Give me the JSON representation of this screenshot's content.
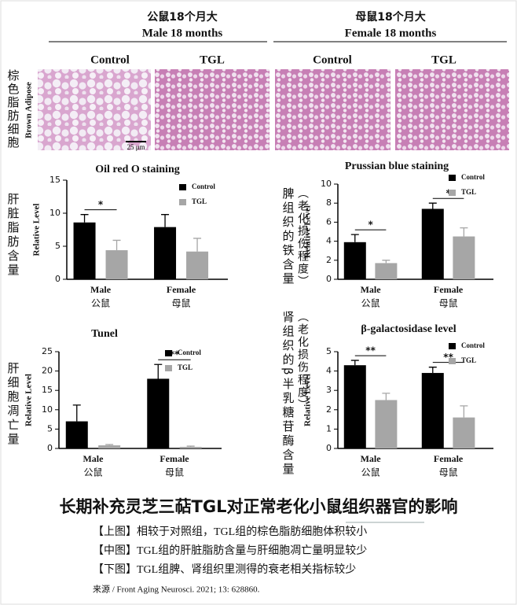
{
  "header": {
    "male_cn": "公鼠18个月大",
    "male_en": "Male  18 months",
    "female_cn": "母鼠18个月大",
    "female_en": "Female  18 months",
    "columns": [
      "Control",
      "TGL",
      "Control",
      "TGL"
    ]
  },
  "histology": {
    "row_label_cn": "棕色脂肪细胞",
    "row_label_en": "Brown Adipose",
    "scale_bar": "25 μm"
  },
  "chart_data": [
    {
      "type": "bar",
      "title": "Oil red O staining",
      "side_label": "肝脏脂肪含量",
      "ylabel": "Relative Level",
      "categories": [
        "Male",
        "Female"
      ],
      "category_sublabels": [
        "公鼠",
        "母鼠"
      ],
      "series": [
        {
          "name": "Control",
          "color": "#000000",
          "values": [
            8.6,
            7.9
          ],
          "errors": [
            1.2,
            1.9
          ]
        },
        {
          "name": "TGL",
          "color": "#a6a6a6",
          "values": [
            4.4,
            4.2
          ],
          "errors": [
            1.5,
            2.0
          ]
        }
      ],
      "significance": [
        "*",
        null
      ],
      "ylim": [
        0,
        15
      ],
      "yticks": [
        0,
        5,
        10,
        15
      ],
      "legend": "upper right"
    },
    {
      "type": "bar",
      "title": "Prussian blue staining",
      "side_label": "脾组织的铁含量",
      "side_note": "（老化损伤程度）",
      "ylabel": "Relative Level",
      "categories": [
        "Male",
        "Female"
      ],
      "category_sublabels": [
        "公鼠",
        "母鼠"
      ],
      "series": [
        {
          "name": "Control",
          "color": "#000000",
          "values": [
            3.9,
            7.4
          ],
          "errors": [
            0.8,
            0.6
          ]
        },
        {
          "name": "TGL",
          "color": "#a6a6a6",
          "values": [
            1.7,
            4.5
          ],
          "errors": [
            0.3,
            0.9
          ]
        }
      ],
      "significance": [
        "*",
        "*"
      ],
      "ylim": [
        0,
        10
      ],
      "yticks": [
        0,
        2,
        4,
        6,
        8,
        10
      ],
      "legend": "upper right"
    },
    {
      "type": "bar",
      "title": "Tunel",
      "side_label": "肝细胞凋亡量",
      "ylabel": "Relative Level",
      "categories": [
        "Male",
        "Female"
      ],
      "category_sublabels": [
        "公鼠",
        "母鼠"
      ],
      "series": [
        {
          "name": "Control",
          "color": "#000000",
          "values": [
            7,
            18
          ],
          "errors": [
            4.2,
            3.7
          ]
        },
        {
          "name": "TGL",
          "color": "#a6a6a6",
          "values": [
            0.8,
            0.4
          ],
          "errors": [
            0.2,
            0.2
          ]
        }
      ],
      "significance": [
        null,
        "**"
      ],
      "ylim": [
        0,
        25
      ],
      "yticks": [
        0,
        5,
        10,
        15,
        20,
        25
      ],
      "legend": "upper right"
    },
    {
      "type": "bar",
      "title": "β-galactosidase level",
      "side_label": "肾组织的β半乳糖苷酶含量",
      "side_note": "（老化损伤程度）",
      "ylabel": "Relative Level",
      "categories": [
        "Male",
        "Female"
      ],
      "category_sublabels": [
        "公鼠",
        "母鼠"
      ],
      "series": [
        {
          "name": "Control",
          "color": "#000000",
          "values": [
            4.3,
            3.9
          ],
          "errors": [
            0.25,
            0.3
          ]
        },
        {
          "name": "TGL",
          "color": "#a6a6a6",
          "values": [
            2.5,
            1.6
          ],
          "errors": [
            0.35,
            0.6
          ]
        }
      ],
      "significance": [
        "**",
        "**"
      ],
      "ylim": [
        0,
        5
      ],
      "yticks": [
        0,
        1,
        2,
        3,
        4,
        5
      ],
      "legend": "upper right"
    }
  ],
  "footer": {
    "title": "长期补充灵芝三萜TGL对正常老化小鼠组织器官的影响",
    "captions": [
      "【上图】相较于对照组，TGL组的棕色脂肪细胞体积较小",
      "【中图】TGL组的肝脏脂肪含量与肝细胞凋亡量明显较少",
      "【下图】TGL组脾、肾组织里测得的衰老相关指标较少"
    ],
    "source": "来源 / Front Aging Neurosci. 2021; 13: 628860."
  }
}
